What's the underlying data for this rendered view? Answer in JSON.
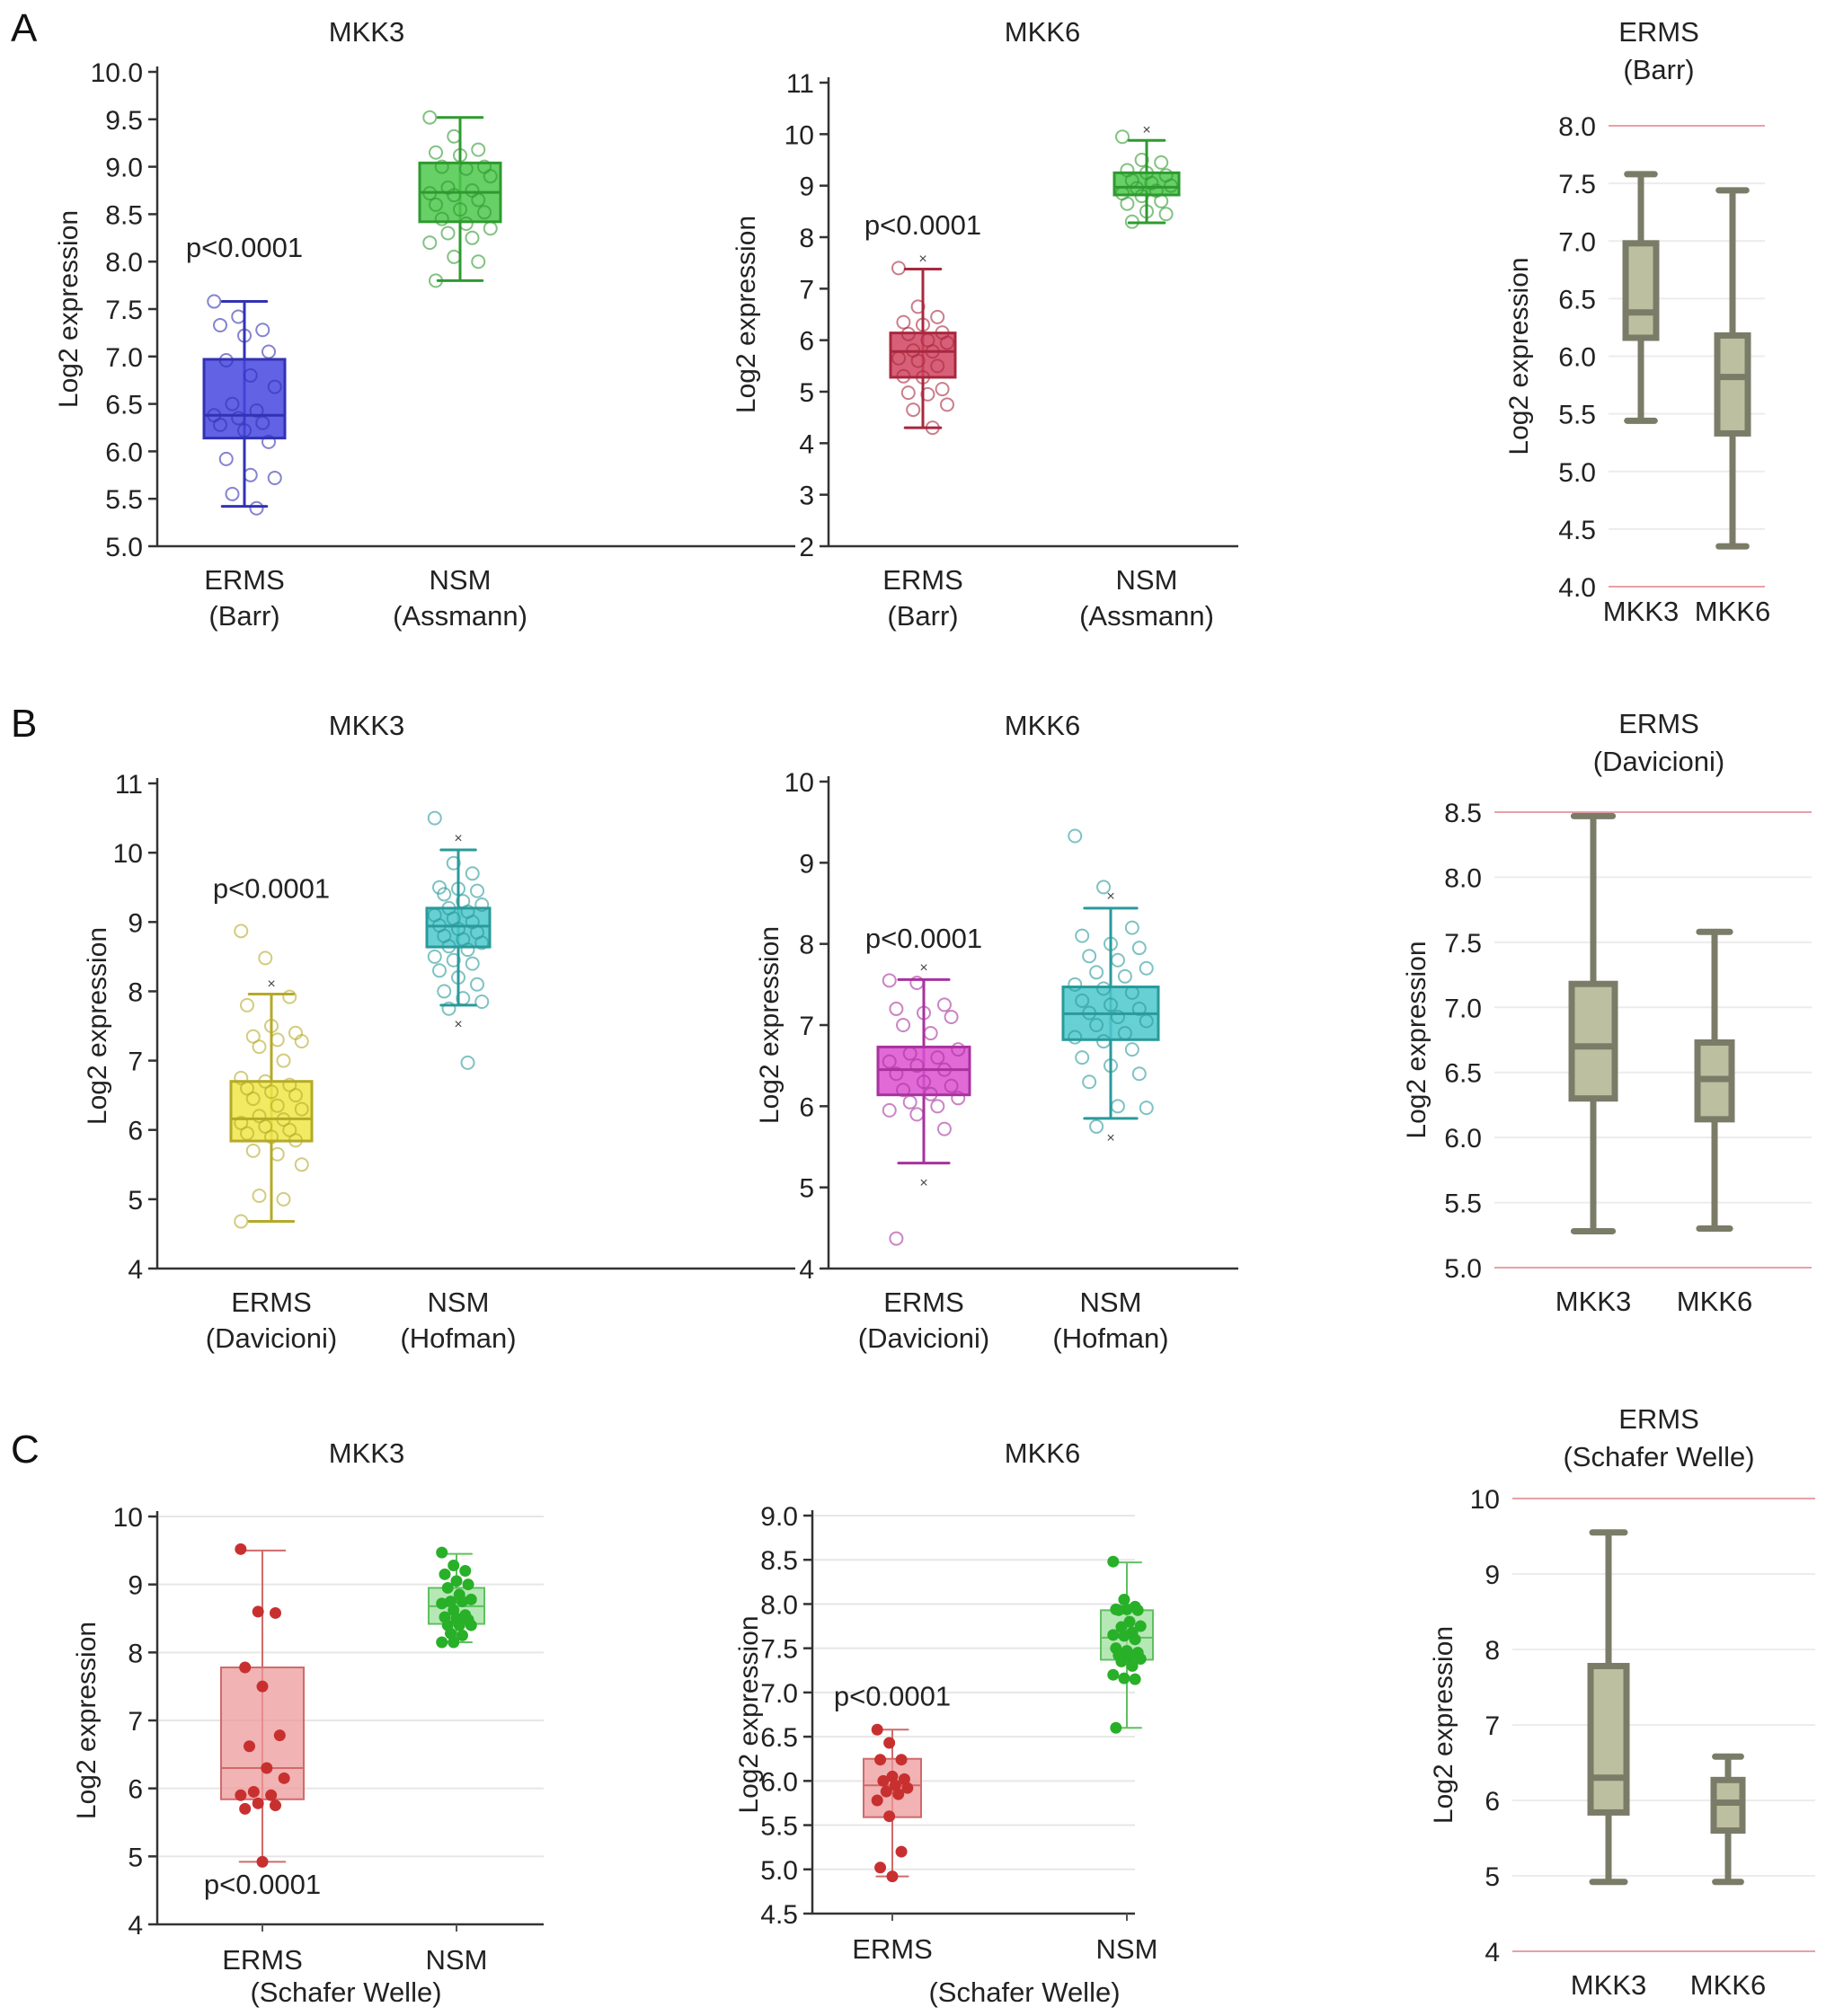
{
  "panels": [
    "A",
    "B",
    "C"
  ],
  "chart_data": [
    {
      "id": "A1",
      "panel": "A",
      "type": "box",
      "title": "MKK3",
      "ylabel": "Log2 expression",
      "ylim": [
        5.0,
        10.0
      ],
      "yticks": [
        "5.0",
        "5.5",
        "6.0",
        "6.5",
        "7.0",
        "7.5",
        "8.0",
        "8.5",
        "9.0",
        "9.5",
        "10.0"
      ],
      "annotation": "p<0.0001",
      "annotation_y": 8.05,
      "style": "axis",
      "grid": false,
      "groups": [
        {
          "label": [
            "ERMS",
            "(Barr)"
          ],
          "color": "#4646e0",
          "stroke": "#3232b4",
          "min": 5.42,
          "q1": 6.14,
          "median": 6.38,
          "q3": 6.97,
          "max": 7.58,
          "points": [
            7.58,
            7.42,
            7.28,
            7.33,
            7.22,
            7.05,
            6.96,
            6.8,
            6.68,
            6.5,
            6.43,
            6.38,
            6.35,
            6.3,
            6.28,
            6.22,
            6.1,
            5.92,
            5.75,
            5.72,
            5.55,
            5.4
          ],
          "outliers": []
        },
        {
          "label": [
            "NSM",
            "(Assmann)"
          ],
          "color": "#4cc84c",
          "stroke": "#2f9a2f",
          "min": 7.8,
          "q1": 8.42,
          "median": 8.73,
          "q3": 9.04,
          "max": 9.52,
          "points": [
            9.52,
            9.32,
            9.18,
            9.15,
            9.12,
            9.0,
            9.0,
            8.98,
            8.9,
            8.78,
            8.75,
            8.72,
            8.7,
            8.65,
            8.6,
            8.55,
            8.52,
            8.45,
            8.4,
            8.35,
            8.3,
            8.25,
            8.2,
            8.05,
            8.0,
            7.8
          ],
          "outliers": []
        }
      ]
    },
    {
      "id": "A2",
      "panel": "A",
      "type": "box",
      "title": "MKK6",
      "ylabel": "Log2 expression",
      "ylim": [
        2,
        11
      ],
      "yticks": [
        "2",
        "3",
        "4",
        "5",
        "6",
        "7",
        "8",
        "9",
        "10",
        "11"
      ],
      "annotation": "p<0.0001",
      "annotation_y": 8.05,
      "style": "axis",
      "grid": false,
      "groups": [
        {
          "label": [
            "ERMS",
            "(Barr)"
          ],
          "color": "#d04460",
          "stroke": "#a8283e",
          "min": 4.3,
          "q1": 5.28,
          "median": 5.78,
          "q3": 6.14,
          "max": 7.38,
          "points": [
            7.4,
            6.65,
            6.45,
            6.35,
            6.3,
            6.15,
            6.12,
            6.0,
            5.95,
            5.8,
            5.78,
            5.65,
            5.6,
            5.5,
            5.3,
            5.28,
            5.05,
            4.98,
            4.95,
            4.75,
            4.65,
            4.3
          ],
          "outliers": [
            7.6
          ]
        },
        {
          "label": [
            "NSM",
            "(Assmann)"
          ],
          "color": "#4cc84c",
          "stroke": "#2f9a2f",
          "min": 8.28,
          "q1": 8.82,
          "median": 8.97,
          "q3": 9.25,
          "max": 9.88,
          "points": [
            9.95,
            9.5,
            9.45,
            9.3,
            9.25,
            9.2,
            9.1,
            9.05,
            9.0,
            8.95,
            8.9,
            8.85,
            8.8,
            8.7,
            8.65,
            8.5,
            8.45,
            8.3
          ],
          "outliers": [
            10.1
          ]
        }
      ]
    },
    {
      "id": "A3",
      "panel": "A",
      "type": "box",
      "title": "ERMS\n(Barr)",
      "ylabel": "Log2 expression",
      "ylim": [
        4.0,
        8.0
      ],
      "yticks": [
        "4.0",
        "4.5",
        "5.0",
        "5.5",
        "6.0",
        "6.5",
        "7.0",
        "7.5",
        "8.0"
      ],
      "style": "grid",
      "grid": true,
      "groups": [
        {
          "label": [
            "MKK3"
          ],
          "color": "#bcc0a0",
          "stroke": "#7a7c68",
          "min": 5.44,
          "q1": 6.16,
          "median": 6.38,
          "q3": 6.98,
          "max": 7.58
        },
        {
          "label": [
            "MKK6"
          ],
          "color": "#bcc0a0",
          "stroke": "#7a7c68",
          "min": 4.35,
          "q1": 5.33,
          "median": 5.82,
          "q3": 6.18,
          "max": 7.44
        }
      ]
    },
    {
      "id": "B1",
      "panel": "B",
      "type": "box",
      "title": "MKK3",
      "ylabel": "Log2 expression",
      "ylim": [
        4,
        11
      ],
      "yticks": [
        "4",
        "5",
        "6",
        "7",
        "8",
        "9",
        "10",
        "11"
      ],
      "annotation": "p<0.0001",
      "annotation_y": 9.35,
      "style": "axis",
      "grid": false,
      "groups": [
        {
          "label": [
            "ERMS",
            "(Davicioni)"
          ],
          "color": "#f0e648",
          "stroke": "#b4aa28",
          "min": 4.68,
          "q1": 5.84,
          "median": 6.16,
          "q3": 6.7,
          "max": 7.96,
          "points": [
            8.87,
            8.48,
            7.92,
            7.8,
            7.5,
            7.4,
            7.35,
            7.3,
            7.28,
            7.2,
            7.0,
            6.75,
            6.7,
            6.65,
            6.6,
            6.55,
            6.5,
            6.45,
            6.35,
            6.3,
            6.2,
            6.15,
            6.1,
            6.05,
            6.0,
            5.95,
            5.9,
            5.85,
            5.7,
            5.65,
            5.5,
            5.05,
            5.0,
            4.68
          ],
          "outliers": [
            8.12
          ]
        },
        {
          "label": [
            "NSM",
            "(Hofman)"
          ],
          "color": "#4cc8cc",
          "stroke": "#2a9a9a",
          "min": 7.8,
          "q1": 8.64,
          "median": 8.94,
          "q3": 9.2,
          "max": 10.04,
          "points": [
            10.5,
            9.85,
            9.7,
            9.5,
            9.48,
            9.45,
            9.4,
            9.3,
            9.25,
            9.2,
            9.15,
            9.1,
            9.05,
            9.0,
            8.95,
            8.9,
            8.85,
            8.8,
            8.75,
            8.7,
            8.65,
            8.6,
            8.5,
            8.45,
            8.4,
            8.3,
            8.2,
            8.1,
            8.0,
            7.9,
            7.85,
            7.75,
            6.97
          ],
          "outliers": [
            10.22,
            7.54
          ]
        }
      ]
    },
    {
      "id": "B2",
      "panel": "B",
      "type": "box",
      "title": "MKK6",
      "ylabel": "Log2 expression",
      "ylim": [
        4,
        10
      ],
      "yticks": [
        "4",
        "5",
        "6",
        "7",
        "8",
        "9",
        "10"
      ],
      "annotation": "p<0.0001",
      "annotation_y": 7.95,
      "style": "axis",
      "grid": false,
      "groups": [
        {
          "label": [
            "ERMS",
            "(Davicioni)"
          ],
          "color": "#dc50d0",
          "stroke": "#a8329e",
          "min": 5.3,
          "q1": 6.14,
          "median": 6.45,
          "q3": 6.73,
          "max": 7.56,
          "points": [
            7.55,
            7.52,
            7.25,
            7.2,
            7.15,
            7.1,
            7.0,
            6.9,
            6.7,
            6.65,
            6.6,
            6.55,
            6.5,
            6.45,
            6.4,
            6.3,
            6.25,
            6.2,
            6.15,
            6.1,
            6.05,
            6.0,
            5.95,
            5.9,
            5.72,
            4.37
          ],
          "outliers": [
            7.72,
            5.07
          ]
        },
        {
          "label": [
            "NSM",
            "(Hofman)"
          ],
          "color": "#4cc8cc",
          "stroke": "#2a9a9a",
          "min": 5.85,
          "q1": 6.82,
          "median": 7.14,
          "q3": 7.47,
          "max": 8.44,
          "points": [
            9.33,
            8.7,
            8.2,
            8.1,
            8.0,
            7.95,
            7.85,
            7.8,
            7.7,
            7.65,
            7.6,
            7.5,
            7.45,
            7.4,
            7.3,
            7.25,
            7.2,
            7.15,
            7.1,
            7.05,
            7.0,
            6.9,
            6.85,
            6.8,
            6.7,
            6.6,
            6.5,
            6.4,
            6.3,
            6.0,
            5.98,
            5.75
          ],
          "outliers": [
            8.6,
            5.62
          ]
        }
      ]
    },
    {
      "id": "B3",
      "panel": "B",
      "type": "box",
      "title": "ERMS\n(Davicioni)",
      "ylabel": "Log2 expression",
      "ylim": [
        5.0,
        8.5
      ],
      "yticks": [
        "5.0",
        "5.5",
        "6.0",
        "6.5",
        "7.0",
        "7.5",
        "8.0",
        "8.5"
      ],
      "style": "grid",
      "grid": true,
      "groups": [
        {
          "label": [
            "MKK3"
          ],
          "color": "#bcc0a0",
          "stroke": "#7a7c68",
          "min": 5.28,
          "q1": 6.3,
          "median": 6.7,
          "q3": 7.18,
          "max": 8.47
        },
        {
          "label": [
            "MKK6"
          ],
          "color": "#bcc0a0",
          "stroke": "#7a7c68",
          "min": 5.3,
          "q1": 6.14,
          "median": 6.45,
          "q3": 6.73,
          "max": 7.58
        }
      ]
    },
    {
      "id": "C1",
      "panel": "C",
      "type": "box",
      "title": "MKK3",
      "ylabel": "Log2 expression",
      "ylim": [
        4,
        10
      ],
      "yticks": [
        "4",
        "5",
        "6",
        "7",
        "8",
        "9",
        "10"
      ],
      "annotation": "p<0.0001",
      "annotation_y": 4.45,
      "xsub": "(Schafer Welle)",
      "style": "gridfill",
      "grid": true,
      "groups": [
        {
          "label": [
            "ERMS"
          ],
          "color": "#ec9a9a",
          "stroke": "#d06a6a",
          "dot": "#c83030",
          "min": 4.92,
          "q1": 5.84,
          "median": 6.3,
          "q3": 7.78,
          "max": 9.5,
          "points": [
            9.52,
            8.6,
            8.58,
            7.78,
            7.5,
            6.78,
            6.62,
            6.3,
            6.15,
            5.95,
            5.9,
            5.9,
            5.78,
            5.75,
            5.7,
            4.92
          ],
          "outliers": []
        },
        {
          "label": [
            "NSM"
          ],
          "color": "#9ee09e",
          "stroke": "#60c060",
          "dot": "#28b028",
          "min": 8.15,
          "q1": 8.42,
          "median": 8.68,
          "q3": 8.95,
          "max": 9.45,
          "points": [
            9.47,
            9.28,
            9.2,
            9.15,
            9.05,
            9.0,
            8.95,
            8.85,
            8.78,
            8.75,
            8.75,
            8.72,
            8.62,
            8.55,
            8.52,
            8.5,
            8.48,
            8.4,
            8.4,
            8.4,
            8.28,
            8.25,
            8.15,
            8.15
          ],
          "outliers": []
        }
      ]
    },
    {
      "id": "C2",
      "panel": "C",
      "type": "box",
      "title": "MKK6",
      "ylabel": "Log2 expression",
      "ylim": [
        4.5,
        9.0
      ],
      "yticks": [
        "4.5",
        "5.0",
        "5.5",
        "6.0",
        "6.5",
        "7.0",
        "7.5",
        "8.0",
        "8.5",
        "9.0"
      ],
      "annotation": "p<0.0001",
      "annotation_y": 6.85,
      "xsub": "(Schafer Welle)",
      "style": "gridfill",
      "grid": true,
      "groups": [
        {
          "label": [
            "ERMS"
          ],
          "color": "#ec9a9a",
          "stroke": "#d06a6a",
          "dot": "#c83030",
          "min": 4.92,
          "q1": 5.59,
          "median": 5.95,
          "q3": 6.25,
          "max": 6.58,
          "points": [
            6.58,
            6.43,
            6.24,
            6.24,
            6.05,
            6.02,
            6.0,
            5.95,
            5.92,
            5.88,
            5.85,
            5.78,
            5.6,
            5.2,
            5.02,
            4.92
          ],
          "outliers": []
        },
        {
          "label": [
            "NSM"
          ],
          "color": "#9ee09e",
          "stroke": "#60c060",
          "dot": "#28b028",
          "min": 6.6,
          "q1": 7.37,
          "median": 7.62,
          "q3": 7.93,
          "max": 8.47,
          "points": [
            8.48,
            8.05,
            7.97,
            7.94,
            7.94,
            7.93,
            7.93,
            7.8,
            7.75,
            7.74,
            7.68,
            7.65,
            7.64,
            7.6,
            7.5,
            7.47,
            7.45,
            7.42,
            7.4,
            7.38,
            7.35,
            7.3,
            7.2,
            7.16,
            7.15,
            6.6
          ],
          "outliers": []
        }
      ]
    },
    {
      "id": "C3",
      "panel": "C",
      "type": "box",
      "title": "ERMS\n(Schafer Welle)",
      "ylabel": "Log2 expression",
      "ylim": [
        4,
        10
      ],
      "yticks": [
        "4",
        "5",
        "6",
        "7",
        "8",
        "9",
        "10"
      ],
      "style": "grid",
      "grid": true,
      "groups": [
        {
          "label": [
            "MKK3"
          ],
          "color": "#bcc0a0",
          "stroke": "#7a7c68",
          "min": 4.92,
          "q1": 5.84,
          "median": 6.3,
          "q3": 7.78,
          "max": 9.55
        },
        {
          "label": [
            "MKK6"
          ],
          "color": "#bcc0a0",
          "stroke": "#7a7c68",
          "min": 4.92,
          "q1": 5.6,
          "median": 5.97,
          "q3": 6.27,
          "max": 6.58
        }
      ]
    }
  ]
}
